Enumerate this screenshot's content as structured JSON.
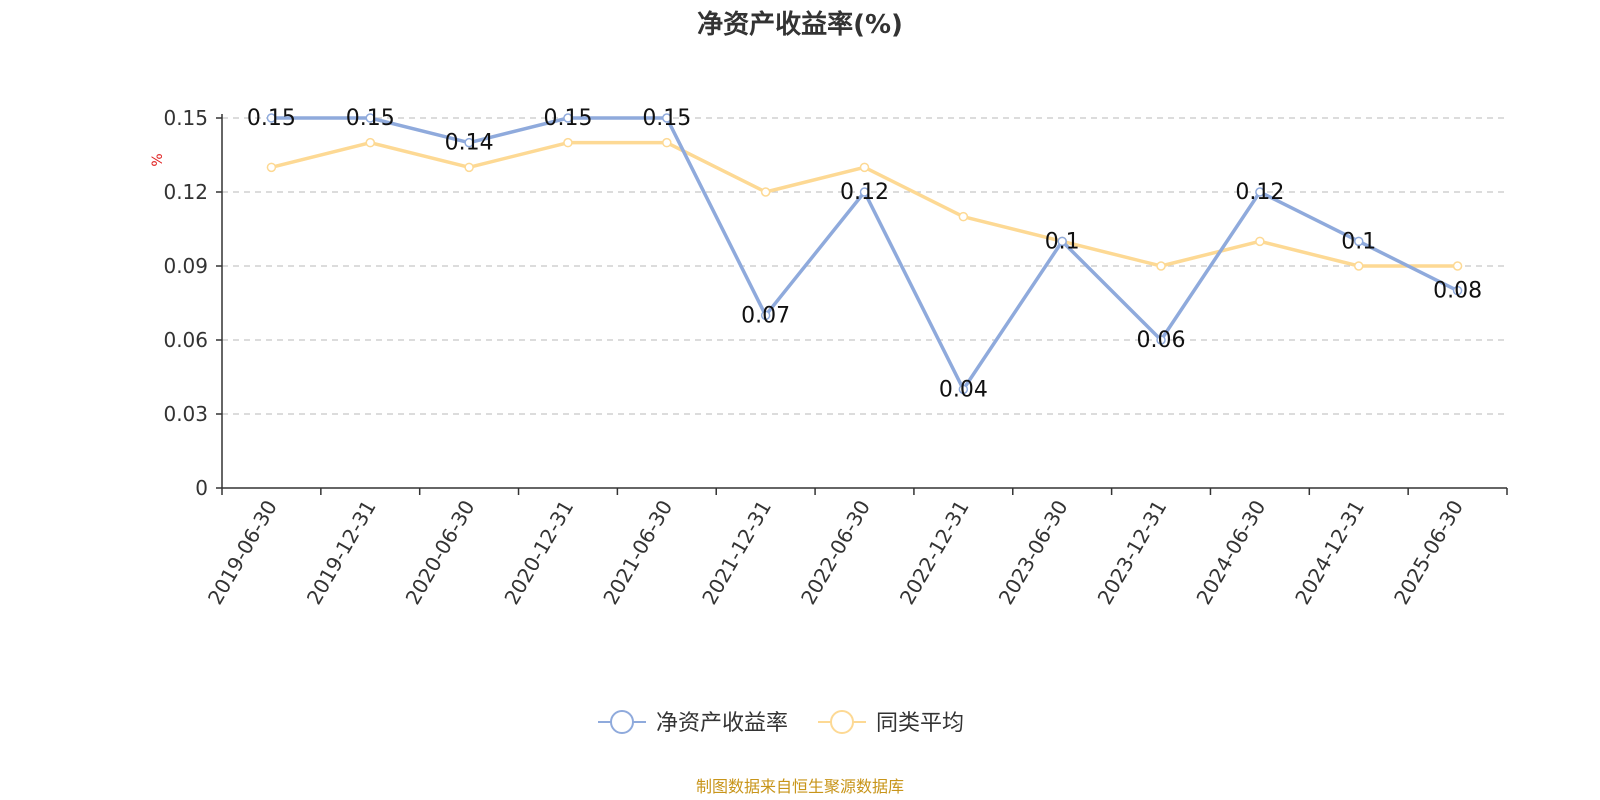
{
  "colors": {
    "series_primary": "#8faadc",
    "series_average": "#fdd994",
    "ylabel": "#e02020",
    "source": "#c8951a",
    "grid": "#c8c8c8",
    "axis": "#333333"
  },
  "chart_data": {
    "type": "line",
    "title": "净资产收益率(%)",
    "ylabel": "%",
    "xlabel": "",
    "ylim": [
      0,
      0.15
    ],
    "yticks": [
      0,
      0.03,
      0.06,
      0.09,
      0.12,
      0.15
    ],
    "ytick_labels": [
      "0",
      "0.03",
      "0.06",
      "0.09",
      "0.12",
      "0.15"
    ],
    "grid": true,
    "legend_position": "bottom-center",
    "categories": [
      "2019-06-30",
      "2019-12-31",
      "2020-06-30",
      "2020-12-31",
      "2021-06-30",
      "2021-12-31",
      "2022-06-30",
      "2022-12-31",
      "2023-06-30",
      "2023-12-31",
      "2024-06-30",
      "2024-12-31",
      "2025-06-30"
    ],
    "series": [
      {
        "name": "净资产收益率",
        "values": [
          0.15,
          0.15,
          0.14,
          0.15,
          0.15,
          0.07,
          0.12,
          0.04,
          0.1,
          0.06,
          0.12,
          0.1,
          0.08
        ],
        "labels": [
          "0.15",
          "0.15",
          "0.14",
          "0.15",
          "0.15",
          "0.07",
          "0.12",
          "0.04",
          "0.1",
          "0.06",
          "0.12",
          "0.1",
          "0.08"
        ]
      },
      {
        "name": "同类平均",
        "values": [
          0.13,
          0.14,
          0.13,
          0.14,
          0.14,
          0.12,
          0.13,
          0.11,
          0.1,
          0.09,
          0.1,
          0.09,
          0.09
        ]
      }
    ]
  },
  "source_note": "制图数据来自恒生聚源数据库"
}
